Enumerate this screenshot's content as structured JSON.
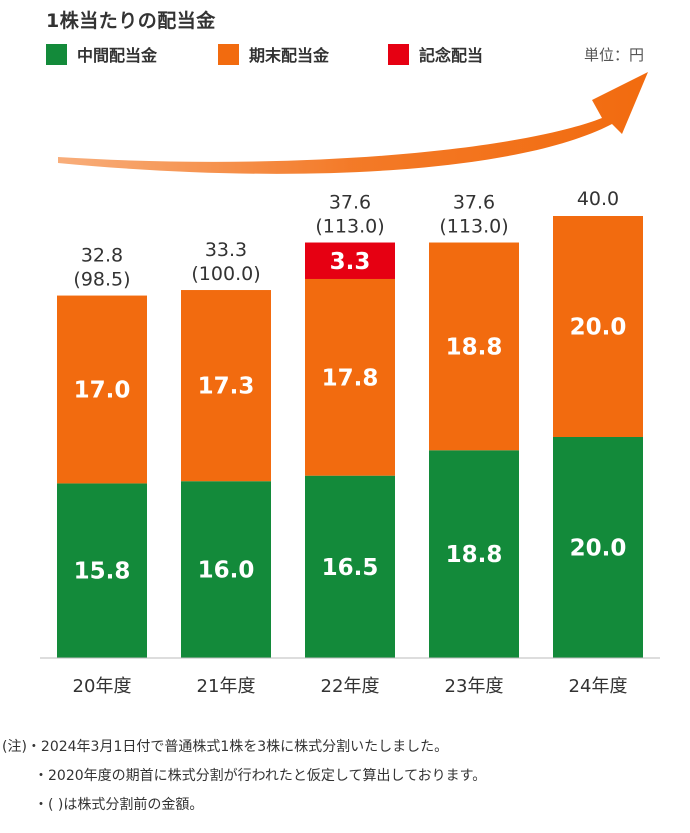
{
  "chart_data": {
    "type": "bar",
    "stacked": true,
    "title": "1株当たりの配当金",
    "unit_label": "単位：円",
    "categories": [
      "20年度",
      "21年度",
      "22年度",
      "23年度",
      "24年度"
    ],
    "series": [
      {
        "name": "中間配当金",
        "color": "#138a3a",
        "values": [
          15.8,
          16.0,
          16.5,
          18.8,
          20.0
        ]
      },
      {
        "name": "期末配当金",
        "color": "#f26b0f",
        "values": [
          17.0,
          17.3,
          17.8,
          18.8,
          20.0
        ]
      },
      {
        "name": "記念配当",
        "color": "#e60012",
        "values": [
          0,
          0,
          3.3,
          0,
          0
        ]
      }
    ],
    "segment_labels": [
      [
        "15.8",
        "16.0",
        "16.5",
        "18.8",
        "20.0"
      ],
      [
        "17.0",
        "17.3",
        "17.8",
        "18.8",
        "20.0"
      ],
      [
        "",
        "",
        "3.3",
        "",
        ""
      ]
    ],
    "totals": [
      "32.8",
      "33.3",
      "37.6",
      "37.6",
      "40.0"
    ],
    "totals_presplit": [
      "(98.5)",
      "(100.0)",
      "(113.0)",
      "(113.0)",
      ""
    ],
    "ylim": [
      0,
      40
    ],
    "grid": false,
    "legend_position": "top"
  },
  "notes": [
    "(注)・2024年3月1日付で普通株式1株を3株に株式分割いたしました。",
    "・2020年度の期首に株式分割が行われたと仮定して算出しております。",
    "・( )は株式分割前の金額。"
  ]
}
